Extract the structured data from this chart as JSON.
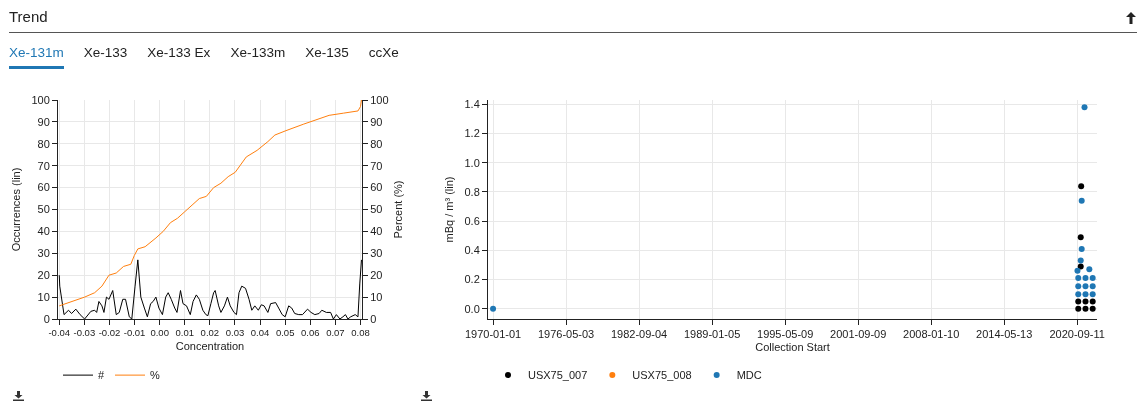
{
  "chart_data": [
    {
      "type": "other",
      "title": "Trend",
      "annotations": [
        "Xe-131m",
        "Xe-133",
        "Xe-133 Ex",
        "Xe-133m",
        "Xe-135",
        "ccXe"
      ]
    },
    {
      "type": "line",
      "xlabel": "Concentration",
      "ylabel": "Occurrences (lin)",
      "y2label": "Percent (%)",
      "xlim": [
        -0.0405,
        0.0806
      ],
      "xticks": [
        {
          "value": -0.04,
          "label": "-0.04"
        },
        {
          "value": -0.03,
          "label": "-0.03"
        },
        {
          "value": -0.02,
          "label": "-0.02"
        },
        {
          "value": -0.01,
          "label": "-0.01"
        },
        {
          "value": 0,
          "label": "0.00"
        },
        {
          "value": 0.01,
          "label": "0.01"
        },
        {
          "value": 0.02,
          "label": "0.02"
        },
        {
          "value": 0.03,
          "label": "0.03"
        },
        {
          "value": 0.04,
          "label": "0.04"
        },
        {
          "value": 0.05,
          "label": "0.05"
        },
        {
          "value": 0.06,
          "label": "0.06"
        },
        {
          "value": 0.07,
          "label": "0.07"
        },
        {
          "value": 0.08,
          "label": "0.08"
        }
      ],
      "ylim": [
        0,
        100
      ],
      "yticks": [
        0,
        10,
        20,
        30,
        40,
        50,
        60,
        70,
        80,
        90,
        100
      ],
      "y2lim": [
        0,
        100
      ],
      "y2ticks": [
        0,
        10,
        20,
        30,
        40,
        50,
        60,
        70,
        80,
        90,
        100
      ],
      "grid": true,
      "legend": "bottom left",
      "marker": "none",
      "line_style": "solid",
      "series": [
        {
          "name": "#",
          "color": "#000000",
          "x": [
            -0.04,
            -0.0398,
            -0.0381,
            -0.0363,
            -0.0351,
            -0.0334,
            -0.0317,
            -0.0299,
            -0.0274,
            -0.0259,
            -0.0251,
            -0.0242,
            -0.023,
            -0.0222,
            -0.0212,
            -0.0202,
            -0.0187,
            -0.0173,
            -0.0161,
            -0.0147,
            -0.0136,
            -0.0121,
            -0.0111,
            -0.0098,
            -0.0087,
            -0.0075,
            -0.0061,
            -0.0049,
            -0.0036,
            -0.0026,
            -0.0015,
            -0.0003,
            0.0011,
            0.0024,
            0.0034,
            0.0046,
            0.006,
            0.0069,
            0.0083,
            0.0093,
            0.0107,
            0.0122,
            0.0133,
            0.0146,
            0.0158,
            0.0172,
            0.0184,
            0.0192,
            0.0204,
            0.0215,
            0.0221,
            0.0235,
            0.0244,
            0.0258,
            0.027,
            0.0281,
            0.0296,
            0.0306,
            0.0316,
            0.0327,
            0.0342,
            0.0356,
            0.0367,
            0.0379,
            0.0393,
            0.0405,
            0.0416,
            0.0431,
            0.0442,
            0.0462,
            0.0474,
            0.0488,
            0.05,
            0.0514,
            0.0526,
            0.0538,
            0.0554,
            0.0569,
            0.0589,
            0.0603,
            0.0618,
            0.0635,
            0.0646,
            0.0664,
            0.0681,
            0.0692,
            0.0704,
            0.0718,
            0.073,
            0.074,
            0.075,
            0.0761,
            0.0779,
            0.079,
            0.0797,
            0.0804
          ],
          "values": [
            20,
            15,
            2,
            4,
            2.5,
            4.5,
            2,
            0,
            3.5,
            4,
            3,
            8,
            6,
            3,
            10,
            9,
            13,
            2,
            3,
            9,
            9,
            1,
            0,
            15,
            27,
            10,
            5,
            1,
            7,
            8,
            10,
            5,
            2,
            10,
            12,
            9,
            5,
            3,
            13,
            7,
            6,
            2,
            8,
            11,
            9,
            4,
            2,
            1.5,
            7,
            12,
            13,
            6,
            3,
            6,
            10,
            6,
            3,
            2,
            12,
            15,
            14,
            9,
            4,
            6,
            4,
            6.5,
            6,
            3,
            7,
            7.5,
            5,
            2,
            1,
            6,
            5,
            2.5,
            2,
            2,
            4.5,
            3,
            2,
            2.5,
            4,
            3,
            3,
            0,
            2,
            0,
            1,
            2,
            0,
            1,
            2,
            1,
            16,
            27
          ]
        },
        {
          "name": "%",
          "color": "#ff7f0e",
          "axis": "y2",
          "x": [
            -0.04,
            -0.0299,
            -0.0259,
            -0.023,
            -0.0202,
            -0.0173,
            -0.0144,
            -0.0115,
            -0.0101,
            -0.0087,
            -0.0058,
            -0.0015,
            0.0014,
            0.0043,
            0.0071,
            0.01,
            0.0129,
            0.0158,
            0.0186,
            0.0215,
            0.0244,
            0.0273,
            0.0301,
            0.0345,
            0.0388,
            0.0431,
            0.0459,
            0.0503,
            0.0574,
            0.0675,
            0.0733,
            0.079,
            0.08,
            0.0804
          ],
          "values": [
            6,
            10,
            12,
            15,
            20,
            21,
            24,
            25,
            29,
            32,
            33,
            37,
            40,
            44,
            46,
            49,
            52,
            55,
            56,
            60,
            62,
            65,
            67,
            74,
            77,
            81,
            84,
            86,
            89,
            93,
            94,
            95,
            97,
            100
          ]
        }
      ]
    },
    {
      "type": "scatter",
      "xlabel": "Collection Start",
      "ylabel": "mBq / m³ (lin)",
      "xlim": [
        "1969-07-25",
        "2022-06-01"
      ],
      "xticks": [
        "1970-01-01",
        "1976-05-03",
        "1982-09-04",
        "1989-01-05",
        "1995-05-09",
        "2001-09-09",
        "2008-01-10",
        "2014-05-13",
        "2020-09-11"
      ],
      "ylim": [
        -0.07,
        1.43
      ],
      "yticks": [
        {
          "value": 0,
          "label": "0.0"
        },
        {
          "value": 0.2,
          "label": "0.2"
        },
        {
          "value": 0.4,
          "label": "0.4"
        },
        {
          "value": 0.6,
          "label": "0.6"
        },
        {
          "value": 0.8,
          "label": "0.8"
        },
        {
          "value": 1,
          "label": "1.0"
        },
        {
          "value": 1.2,
          "label": "1.2"
        },
        {
          "value": 1.4,
          "label": "1.4"
        }
      ],
      "grid": true,
      "legend": "bottom left",
      "marker": "circle",
      "series": [
        {
          "name": "USX75_007",
          "color": "#000000",
          "x": [
            "2021-01-15",
            "2021-01-01",
            "2021-01-01",
            "2020-10-15",
            "2020-10-15",
            "2021-06-01",
            "2021-06-01",
            "2022-01-15",
            "2022-01-15"
          ],
          "values": [
            0.84,
            0.49,
            0.29,
            0,
            0.05,
            0,
            0.05,
            0,
            0.05
          ]
        },
        {
          "name": "USX75_008",
          "color": "#ff7f0e"
        },
        {
          "name": "MDC",
          "color": "#1f77b4",
          "x": [
            "1970-01-01",
            "2021-05-01",
            "2021-02-01",
            "2021-02-01",
            "2021-01-01",
            "2020-09-20",
            "2021-10-01",
            "2020-10-15",
            "2020-10-15",
            "2020-10-15",
            "2021-06-01",
            "2021-06-01",
            "2021-06-01",
            "2022-01-15",
            "2022-01-15",
            "2022-01-15"
          ],
          "values": [
            0,
            1.38,
            0.74,
            0.41,
            0.33,
            0.26,
            0.27,
            0.1,
            0.155,
            0.21,
            0.1,
            0.155,
            0.21,
            0.1,
            0.155,
            0.21
          ]
        }
      ]
    }
  ]
}
